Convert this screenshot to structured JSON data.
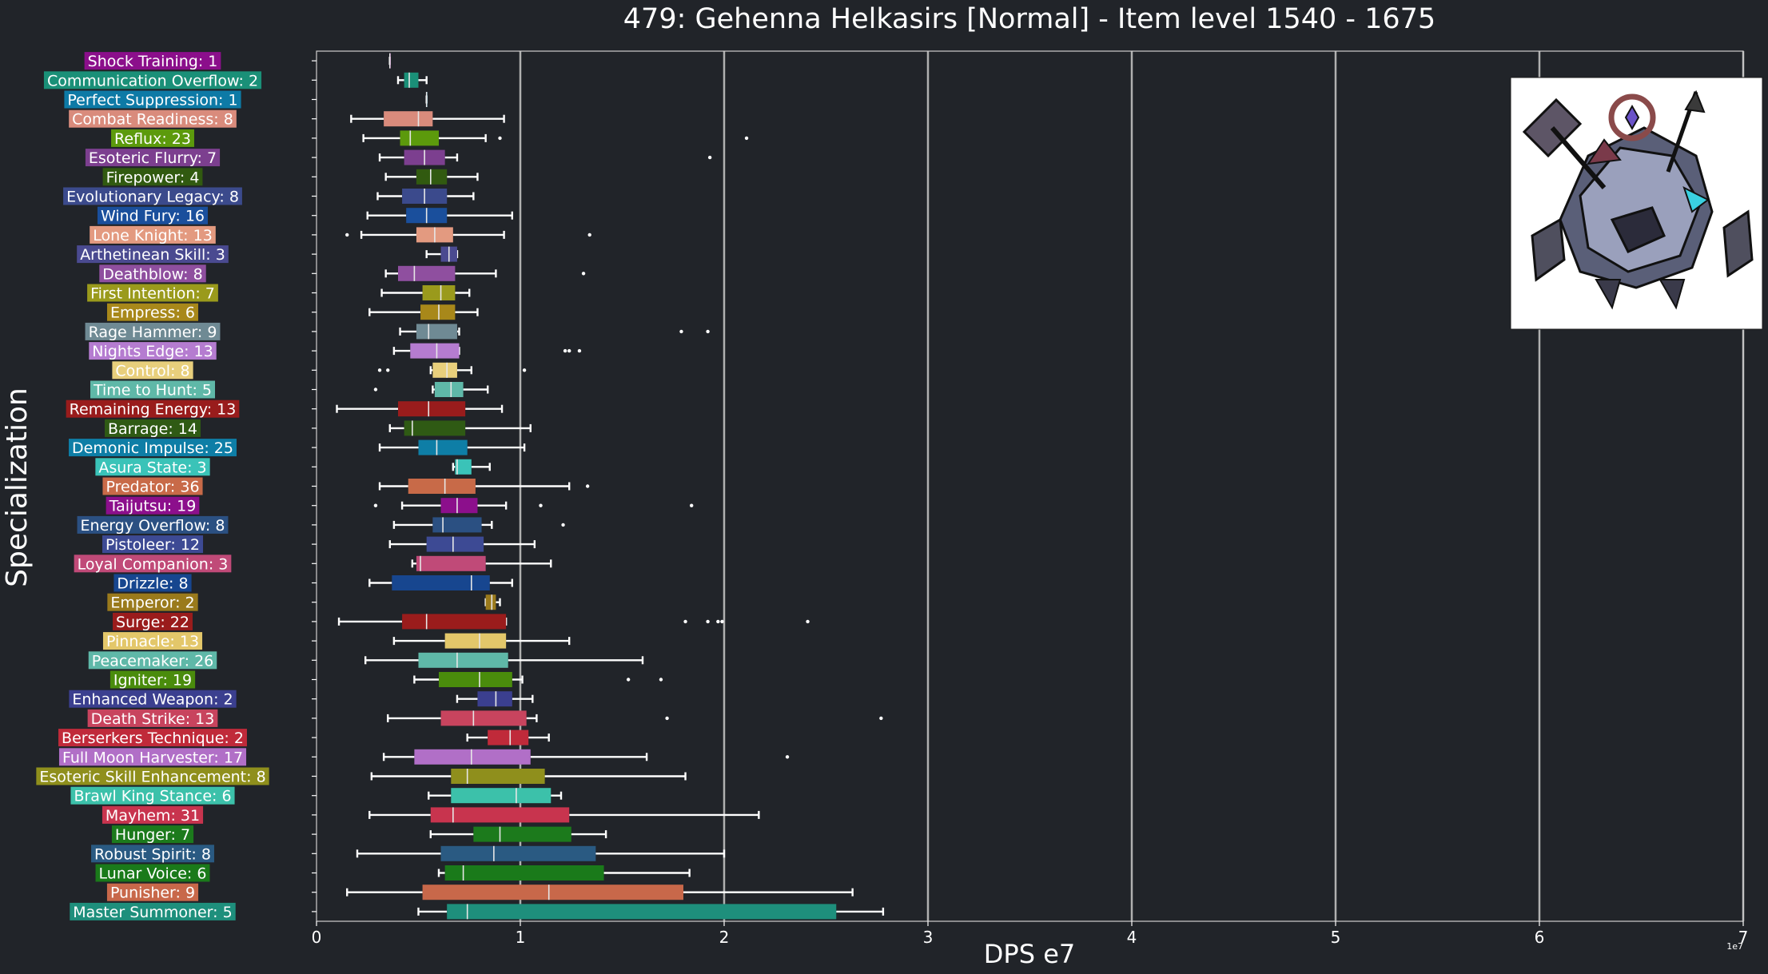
{
  "chart_data": {
    "type": "box",
    "orientation": "horizontal",
    "title": "479: Gehenna Helkasirs [Normal] - Item level 1540 - 1675",
    "xlabel": "DPS e7",
    "ylabel": "Specialization",
    "x_offset_label": "1e7",
    "xlim": [
      0,
      70000000
    ],
    "x_ticks": [
      0,
      10000000,
      20000000,
      30000000,
      40000000,
      50000000,
      60000000,
      70000000
    ],
    "x_tick_labels": [
      "0",
      "1",
      "2",
      "3",
      "4",
      "5",
      "6",
      "7"
    ],
    "grid": "vertical major",
    "image": "boss-portrait",
    "categories": [
      {
        "label": "Shock Training: 1",
        "color": "#8b0f8b",
        "min": 3.6,
        "q1": 3.6,
        "median": 3.6,
        "q3": 3.6,
        "max": 3.6,
        "outliers": []
      },
      {
        "label": "Communication Overflow: 2",
        "color": "#1a9078",
        "min": 4.0,
        "q1": 4.3,
        "median": 4.55,
        "q3": 5.0,
        "max": 5.4,
        "outliers": []
      },
      {
        "label": "Perfect Suppression: 1",
        "color": "#0d7aa6",
        "min": 5.4,
        "q1": 5.4,
        "median": 5.4,
        "q3": 5.4,
        "max": 5.4,
        "outliers": []
      },
      {
        "label": "Combat Readiness: 8",
        "color": "#d98b7c",
        "min": 1.7,
        "q1": 3.3,
        "median": 5.0,
        "q3": 5.7,
        "max": 9.2,
        "outliers": []
      },
      {
        "label": "Reflux: 23",
        "color": "#5c9a0c",
        "min": 2.3,
        "q1": 4.1,
        "median": 4.6,
        "q3": 6.0,
        "max": 8.3,
        "outliers": [
          9.0,
          21.1
        ]
      },
      {
        "label": "Esoteric Flurry: 7",
        "color": "#7c3f8f",
        "min": 3.1,
        "q1": 4.3,
        "median": 5.3,
        "q3": 6.3,
        "max": 6.9,
        "outliers": [
          19.3
        ]
      },
      {
        "label": "Firepower: 4",
        "color": "#315a10",
        "min": 3.4,
        "q1": 4.9,
        "median": 5.6,
        "q3": 6.4,
        "max": 7.9,
        "outliers": []
      },
      {
        "label": "Evolutionary Legacy: 8",
        "color": "#3b4a8c",
        "min": 3.0,
        "q1": 4.2,
        "median": 5.3,
        "q3": 6.4,
        "max": 7.7,
        "outliers": []
      },
      {
        "label": "Wind Fury: 16",
        "color": "#1a4f9c",
        "min": 2.5,
        "q1": 4.4,
        "median": 5.4,
        "q3": 6.4,
        "max": 9.6,
        "outliers": []
      },
      {
        "label": "Lone Knight: 13",
        "color": "#e39a80",
        "min": 2.2,
        "q1": 4.9,
        "median": 5.8,
        "q3": 6.7,
        "max": 9.2,
        "outliers": [
          1.5,
          13.4
        ]
      },
      {
        "label": "Arthetinean Skill: 3",
        "color": "#4a4a90",
        "min": 5.4,
        "q1": 6.1,
        "median": 6.5,
        "q3": 6.9,
        "max": 6.9,
        "outliers": []
      },
      {
        "label": "Deathblow: 8",
        "color": "#8f4f9f",
        "min": 3.4,
        "q1": 4.0,
        "median": 4.8,
        "q3": 6.8,
        "max": 8.8,
        "outliers": [
          13.1
        ]
      },
      {
        "label": "First Intention: 7",
        "color": "#9a9a1c",
        "min": 3.2,
        "q1": 5.2,
        "median": 6.1,
        "q3": 6.8,
        "max": 7.5,
        "outliers": []
      },
      {
        "label": "Empress: 6",
        "color": "#a8881a",
        "min": 2.6,
        "q1": 5.1,
        "median": 6.0,
        "q3": 6.8,
        "max": 7.9,
        "outliers": []
      },
      {
        "label": "Rage Hammer: 9",
        "color": "#6f8a94",
        "min": 4.1,
        "q1": 4.9,
        "median": 5.5,
        "q3": 6.9,
        "max": 7.0,
        "outliers": [
          17.9,
          19.2
        ]
      },
      {
        "label": "Nights Edge: 13",
        "color": "#b57cd0",
        "min": 3.8,
        "q1": 4.6,
        "median": 5.9,
        "q3": 7.0,
        "max": 7.0,
        "outliers": [
          12.2,
          12.4,
          12.9
        ]
      },
      {
        "label": "Control: 8",
        "color": "#e8cf7c",
        "min": 5.6,
        "q1": 5.7,
        "median": 6.4,
        "q3": 6.9,
        "max": 7.6,
        "outliers": [
          3.1,
          3.5,
          10.2
        ]
      },
      {
        "label": "Time to Hunt: 5",
        "color": "#5fb8a8",
        "min": 5.7,
        "q1": 5.8,
        "median": 6.6,
        "q3": 7.2,
        "max": 8.4,
        "outliers": [
          2.9
        ]
      },
      {
        "label": "Remaining Energy: 13",
        "color": "#991c1c",
        "min": 1.0,
        "q1": 4.0,
        "median": 5.5,
        "q3": 7.3,
        "max": 9.1,
        "outliers": []
      },
      {
        "label": "Barrage: 14",
        "color": "#2f5a14",
        "min": 3.6,
        "q1": 4.3,
        "median": 4.7,
        "q3": 7.3,
        "max": 10.5,
        "outliers": []
      },
      {
        "label": "Demonic Impulse: 25",
        "color": "#0e7ea6",
        "min": 3.1,
        "q1": 5.0,
        "median": 5.9,
        "q3": 7.4,
        "max": 10.2,
        "outliers": []
      },
      {
        "label": "Asura State: 3",
        "color": "#3ac3b8",
        "min": 6.7,
        "q1": 6.8,
        "median": 6.9,
        "q3": 7.6,
        "max": 8.5,
        "outliers": []
      },
      {
        "label": "Predator: 36",
        "color": "#c86a48",
        "min": 3.1,
        "q1": 4.5,
        "median": 6.3,
        "q3": 7.8,
        "max": 12.4,
        "outliers": [
          13.3
        ]
      },
      {
        "label": "Taijutsu: 19",
        "color": "#8c0f8c",
        "min": 4.2,
        "q1": 6.1,
        "median": 6.9,
        "q3": 7.9,
        "max": 9.3,
        "outliers": [
          2.9,
          11.0,
          18.4
        ]
      },
      {
        "label": "Energy Overflow: 8",
        "color": "#2b5082",
        "min": 3.8,
        "q1": 5.7,
        "median": 6.2,
        "q3": 8.1,
        "max": 8.6,
        "outliers": [
          12.1
        ]
      },
      {
        "label": "Pistoleer: 12",
        "color": "#3d4a94",
        "min": 3.6,
        "q1": 5.4,
        "median": 6.7,
        "q3": 8.2,
        "max": 10.7,
        "outliers": []
      },
      {
        "label": "Loyal Companion: 3",
        "color": "#c04a78",
        "min": 4.7,
        "q1": 4.9,
        "median": 5.1,
        "q3": 8.3,
        "max": 11.5,
        "outliers": []
      },
      {
        "label": "Drizzle: 8",
        "color": "#17468f",
        "min": 2.6,
        "q1": 3.7,
        "median": 7.6,
        "q3": 8.5,
        "max": 9.6,
        "outliers": []
      },
      {
        "label": "Emperor: 2",
        "color": "#9a7a1c",
        "min": 8.3,
        "q1": 8.3,
        "median": 8.6,
        "q3": 8.8,
        "max": 9.0,
        "outliers": []
      },
      {
        "label": "Surge: 22",
        "color": "#9a1c1c",
        "min": 1.1,
        "q1": 4.2,
        "median": 5.4,
        "q3": 9.3,
        "max": 9.3,
        "outliers": [
          18.1,
          19.2,
          19.7,
          19.9,
          24.1
        ]
      },
      {
        "label": "Pinnacle: 13",
        "color": "#e3c76a",
        "min": 3.8,
        "q1": 6.3,
        "median": 8.0,
        "q3": 9.3,
        "max": 12.4,
        "outliers": []
      },
      {
        "label": "Peacemaker: 26",
        "color": "#5fb8a8",
        "min": 2.4,
        "q1": 5.0,
        "median": 6.9,
        "q3": 9.4,
        "max": 16.0,
        "outliers": []
      },
      {
        "label": "Igniter: 19",
        "color": "#4a8c0c",
        "min": 4.8,
        "q1": 6.0,
        "median": 8.0,
        "q3": 9.6,
        "max": 10.1,
        "outliers": [
          15.3,
          16.9
        ]
      },
      {
        "label": "Enhanced Weapon: 2",
        "color": "#3b3f8f",
        "min": 6.9,
        "q1": 7.9,
        "median": 8.8,
        "q3": 9.6,
        "max": 10.6,
        "outliers": []
      },
      {
        "label": "Death Strike: 13",
        "color": "#c8445e",
        "min": 3.5,
        "q1": 6.1,
        "median": 7.7,
        "q3": 10.3,
        "max": 10.8,
        "outliers": [
          17.2,
          27.7
        ]
      },
      {
        "label": "Berserkers Technique: 2",
        "color": "#c02a3a",
        "min": 7.4,
        "q1": 8.4,
        "median": 9.5,
        "q3": 10.4,
        "max": 11.4,
        "outliers": []
      },
      {
        "label": "Full Moon Harvester: 17",
        "color": "#b16fc7",
        "min": 3.3,
        "q1": 4.8,
        "median": 7.6,
        "q3": 10.5,
        "max": 16.2,
        "outliers": [
          23.1
        ]
      },
      {
        "label": "Esoteric Skill Enhancement: 8",
        "color": "#8f8f1c",
        "min": 2.7,
        "q1": 6.6,
        "median": 7.4,
        "q3": 11.2,
        "max": 18.1,
        "outliers": []
      },
      {
        "label": "Brawl King Stance: 6",
        "color": "#3cc1aa",
        "min": 5.5,
        "q1": 6.6,
        "median": 9.8,
        "q3": 11.5,
        "max": 12.0,
        "outliers": []
      },
      {
        "label": "Mayhem: 31",
        "color": "#c8344e",
        "min": 2.6,
        "q1": 5.6,
        "median": 6.7,
        "q3": 12.4,
        "max": 21.7,
        "outliers": []
      },
      {
        "label": "Hunger: 7",
        "color": "#1c7a1c",
        "min": 5.6,
        "q1": 7.7,
        "median": 9.0,
        "q3": 12.5,
        "max": 14.2,
        "outliers": []
      },
      {
        "label": "Robust Spirit: 8",
        "color": "#2a5a82",
        "min": 2.0,
        "q1": 6.1,
        "median": 8.7,
        "q3": 13.7,
        "max": 20.0,
        "outliers": []
      },
      {
        "label": "Lunar Voice: 6",
        "color": "#1a7a1a",
        "min": 6.0,
        "q1": 6.3,
        "median": 7.2,
        "q3": 14.1,
        "max": 18.3,
        "outliers": []
      },
      {
        "label": "Punisher: 9",
        "color": "#c8684a",
        "min": 1.5,
        "q1": 5.2,
        "median": 11.4,
        "q3": 18.0,
        "max": 26.3,
        "outliers": []
      },
      {
        "label": "Master Summoner: 5",
        "color": "#1e8f7c",
        "min": 5.0,
        "q1": 6.4,
        "median": 7.4,
        "q3": 25.5,
        "max": 27.8,
        "outliers": []
      }
    ],
    "value_scale": 1000000
  }
}
